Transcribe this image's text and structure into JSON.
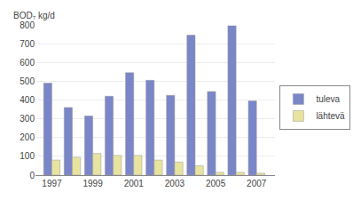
{
  "chart_data": {
    "type": "bar",
    "ylabel": "BOD₇ kg/d",
    "x": [
      1997,
      1998,
      1999,
      2000,
      2001,
      2002,
      2003,
      2004,
      2005,
      2006,
      2007
    ],
    "series": [
      {
        "name": "tuleva",
        "color": "#7B86C8",
        "values": [
          490,
          360,
          315,
          420,
          545,
          505,
          425,
          745,
          445,
          795,
          395
        ]
      },
      {
        "name": "lähtevä",
        "color": "#E8E4A0",
        "values": [
          80,
          95,
          115,
          105,
          105,
          80,
          70,
          50,
          15,
          15,
          10
        ]
      }
    ],
    "xlim": [
      1996.2,
      2007.9
    ],
    "xticks": [
      1997,
      1999,
      2001,
      2003,
      2005,
      2007
    ],
    "ylim": [
      0,
      800
    ],
    "yticks": [
      0,
      100,
      200,
      300,
      400,
      500,
      600,
      700,
      800
    ],
    "grid": true,
    "legend": "right"
  }
}
